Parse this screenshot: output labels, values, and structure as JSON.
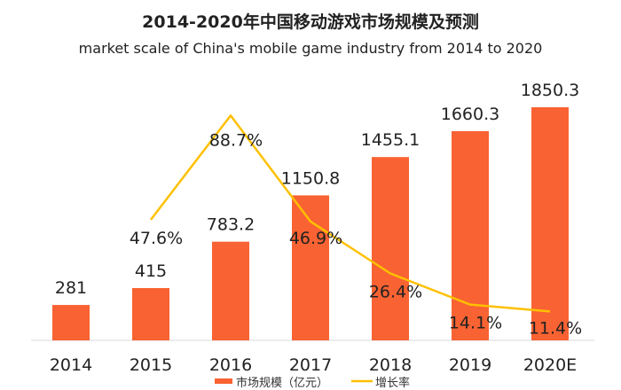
{
  "chart_data": {
    "type": "bar",
    "title": "2014-2020年中国移动游戏市场规模及预测",
    "subtitle": "market scale of China's mobile game industry from 2014 to 2020",
    "categories": [
      "2014",
      "2015",
      "2016",
      "2017",
      "2018",
      "2019",
      "2020E"
    ],
    "series": [
      {
        "name": "市场规模（亿元）",
        "type": "bar",
        "color": "#F96232",
        "values": [
          281,
          415,
          783.2,
          1150.8,
          1455.1,
          1660.3,
          1850.3
        ],
        "labels": [
          "281",
          "415",
          "783.2",
          "1150.8",
          "1455.1",
          "1660.3",
          "1850.3"
        ]
      },
      {
        "name": "增长率",
        "type": "line",
        "color": "#FFC000",
        "values": [
          null,
          47.6,
          88.7,
          46.9,
          26.4,
          14.1,
          11.4
        ],
        "labels": [
          "",
          "47.6%",
          "88.7%",
          "46.9%",
          "26.4%",
          "14.1%",
          "11.4%"
        ]
      }
    ],
    "legend": "bottom",
    "grid": false
  }
}
